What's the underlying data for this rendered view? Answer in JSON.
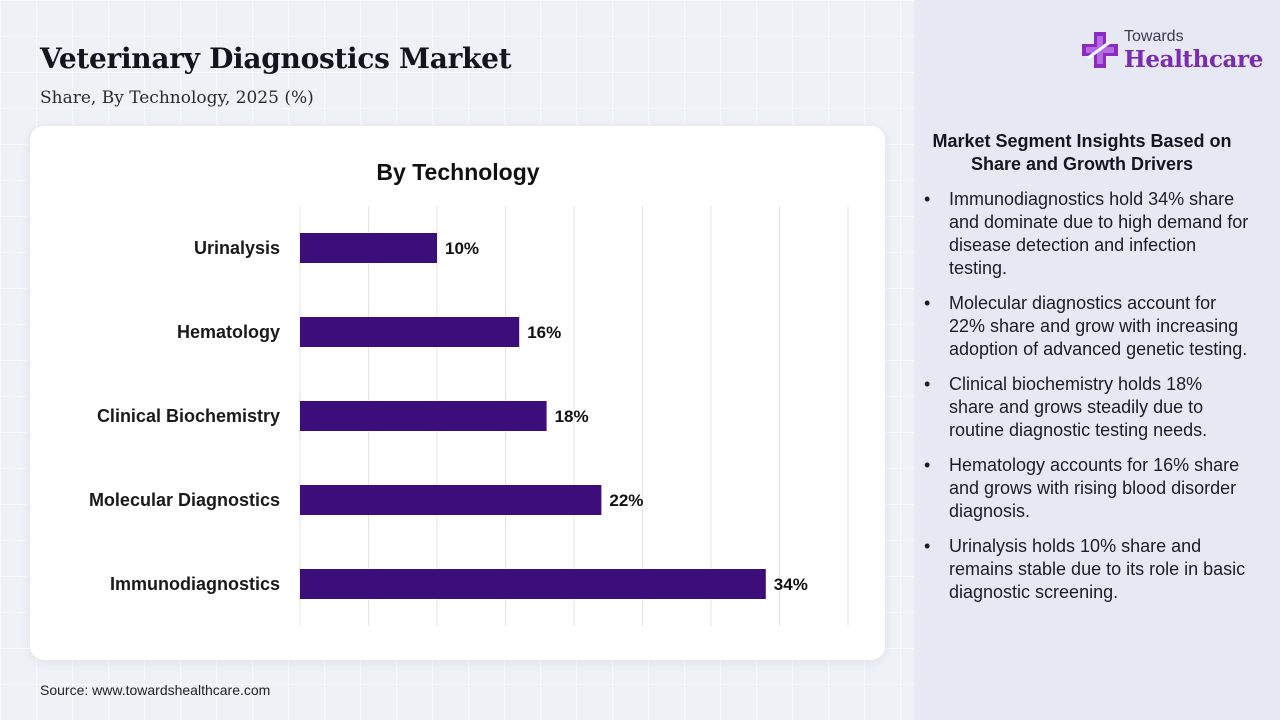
{
  "header": {
    "title": "Veterinary Diagnostics Market",
    "subtitle": "Share, By Technology, 2025 (%)"
  },
  "logo": {
    "top_text": "Towards",
    "main_text": "Healthcare",
    "icon": "plus-cross-icon"
  },
  "chart_data": {
    "type": "bar",
    "orientation": "horizontal",
    "title": "By Technology",
    "categories": [
      "Urinalysis",
      "Hematology",
      "Clinical Biochemistry",
      "Molecular Diagnostics",
      "Immunodiagnostics"
    ],
    "values": [
      10,
      16,
      18,
      22,
      34
    ],
    "value_labels": [
      "10%",
      "16%",
      "18%",
      "22%",
      "34%"
    ],
    "xlim": [
      0,
      40
    ],
    "xlabel": "",
    "ylabel": "",
    "grid": true,
    "bar_color": "#3d0e7a"
  },
  "insights": {
    "title": "Market Segment Insights Based on Share and Growth Drivers",
    "items": [
      "Immunodiagnostics hold 34% share and dominate due to high demand for disease detection and infection testing.",
      "Molecular diagnostics account for 22% share and grow with increasing adoption of advanced genetic testing.",
      "Clinical biochemistry holds 18% share and grows steadily due to routine diagnostic testing needs.",
      "Hematology accounts for 16% share and grows with rising blood disorder diagnosis.",
      "Urinalysis holds 10% share and remains stable due to its role in basic diagnostic screening."
    ]
  },
  "footer": {
    "source": "Source: www.towardshealthcare.com"
  }
}
